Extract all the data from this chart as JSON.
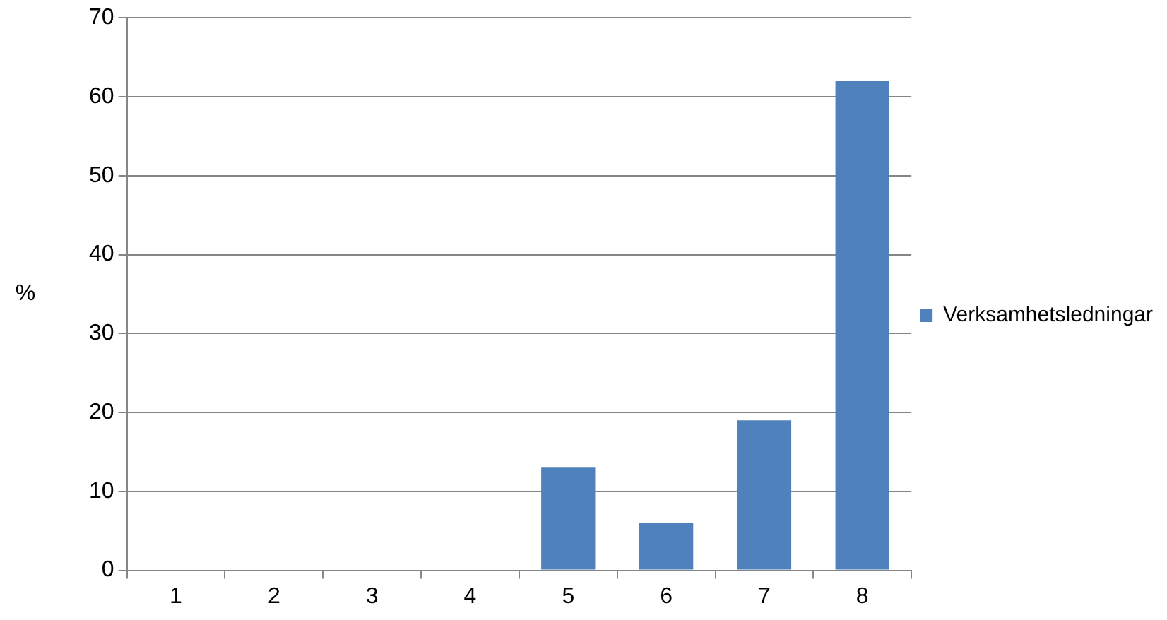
{
  "chart_data": {
    "type": "bar",
    "ylabel": "%",
    "categories": [
      "1",
      "2",
      "3",
      "4",
      "5",
      "6",
      "7",
      "8"
    ],
    "series": [
      {
        "name": "Verksamhetsledningar",
        "color": "#4f81bd",
        "values": [
          0,
          0,
          0,
          0,
          13,
          6,
          19,
          62
        ]
      }
    ],
    "ylim": [
      0,
      70
    ],
    "yticks": [
      0,
      10,
      20,
      30,
      40,
      50,
      60,
      70
    ],
    "grid": "y",
    "legend": "right"
  }
}
